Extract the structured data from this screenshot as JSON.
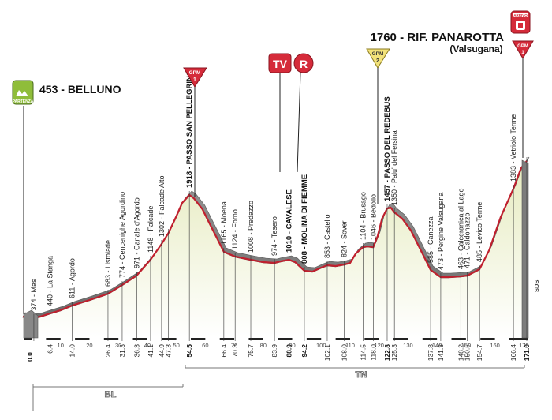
{
  "start": {
    "altitude": "453",
    "name": "BELLUNO",
    "badge": "PARTENZA"
  },
  "finish": {
    "title": "1760 - RIF. PANAROTTA",
    "subtitle": "(Valsugana)",
    "badge": "ARRIVO"
  },
  "markers": {
    "tv": "TV",
    "r": "R",
    "gpm": [
      {
        "id": "gpm1-pellegrino",
        "label": "GPM",
        "category": "1"
      },
      {
        "id": "gpm2-redebus",
        "label": "GPM",
        "category": "2"
      },
      {
        "id": "gpm1-panarotta",
        "label": "GPM",
        "category": "1"
      }
    ]
  },
  "regions": [
    "BL",
    "TN"
  ],
  "sds": "SDS",
  "waypoints": [
    {
      "label": "374 - Mas",
      "km": "",
      "bold": false
    },
    {
      "label": "440 - La Stanga",
      "km": "6.4",
      "bold": false
    },
    {
      "label": "611 - Agordo",
      "km": "14.0",
      "bold": false
    },
    {
      "label": "683 - Listolade",
      "km": "26.4",
      "bold": false
    },
    {
      "label": "774 - Cencenighe Agordino",
      "km": "31.3",
      "bold": false
    },
    {
      "label": "971 - Canale d'Agordo",
      "km": "36.3",
      "bold": false
    },
    {
      "label": "1148 - Falcade",
      "km": "41.1",
      "bold": false
    },
    {
      "label": "1302 - Falcade Alto",
      "km": "44.9",
      "bold": false
    },
    {
      "label": "",
      "km": "47.3",
      "bold": false
    },
    {
      "label": "1918 - PASSO SAN PELLEGRINO",
      "km": "54.5",
      "bold": true
    },
    {
      "label": "1165 - Moena",
      "km": "66.4",
      "bold": false
    },
    {
      "label": "1124 - Forno",
      "km": "70.3",
      "bold": false
    },
    {
      "label": "1008 - Predazzo",
      "km": "75.7",
      "bold": false
    },
    {
      "label": "974 - Tesero",
      "km": "83.9",
      "bold": false
    },
    {
      "label": "1010 - CAVALESE",
      "km": "88.9",
      "bold": true
    },
    {
      "label": "808 - MOLINA DI FIEMME",
      "km": "94.2",
      "bold": true
    },
    {
      "label": "853 - Castello",
      "km": "102.1",
      "bold": false
    },
    {
      "label": "824 - Sover",
      "km": "108.0",
      "bold": false
    },
    {
      "label": "1104 - Brusago",
      "km": "114.5",
      "bold": false
    },
    {
      "label": "1046 - Bedollo",
      "km": "118.0",
      "bold": false
    },
    {
      "label": "1457 - PASSO DEL REDEBUS",
      "km": "122.8",
      "bold": true
    },
    {
      "label": "1350 - Palu' del Fersina",
      "km": "125.3",
      "bold": false
    },
    {
      "label": "585 - Canezza",
      "km": "137.8",
      "bold": false
    },
    {
      "label": "473 - Pergine Valsugana",
      "km": "141.3",
      "bold": false
    },
    {
      "label": "463 - Calceranica al Lago",
      "km": "148.2",
      "bold": false
    },
    {
      "label": "471 - Caldonazzo",
      "km": "150.5",
      "bold": false
    },
    {
      "label": "485 - Levico Terme",
      "km": "154.7",
      "bold": false
    },
    {
      "label": "1383 - Vetriolo Terme",
      "km": "166.4",
      "bold": false
    },
    {
      "label": "",
      "km": "171.0",
      "bold": true
    }
  ],
  "start_km": "0.0",
  "ticks": [
    "10",
    "20",
    "30",
    "40",
    "50",
    "60",
    "70",
    "80",
    "90",
    "100",
    "110",
    "120",
    "130",
    "140",
    "150",
    "160",
    "170"
  ],
  "colors": {
    "profile_line": "#c0202e",
    "profile_fill_top": "#e9edc7",
    "profile_fill_bottom": "#ffffff",
    "base_band": "#7a7a7a",
    "gpm_red": "#d52b3a",
    "gpm2_yellow": "#f2e27a",
    "start_badge": "#8fbd3a"
  }
}
